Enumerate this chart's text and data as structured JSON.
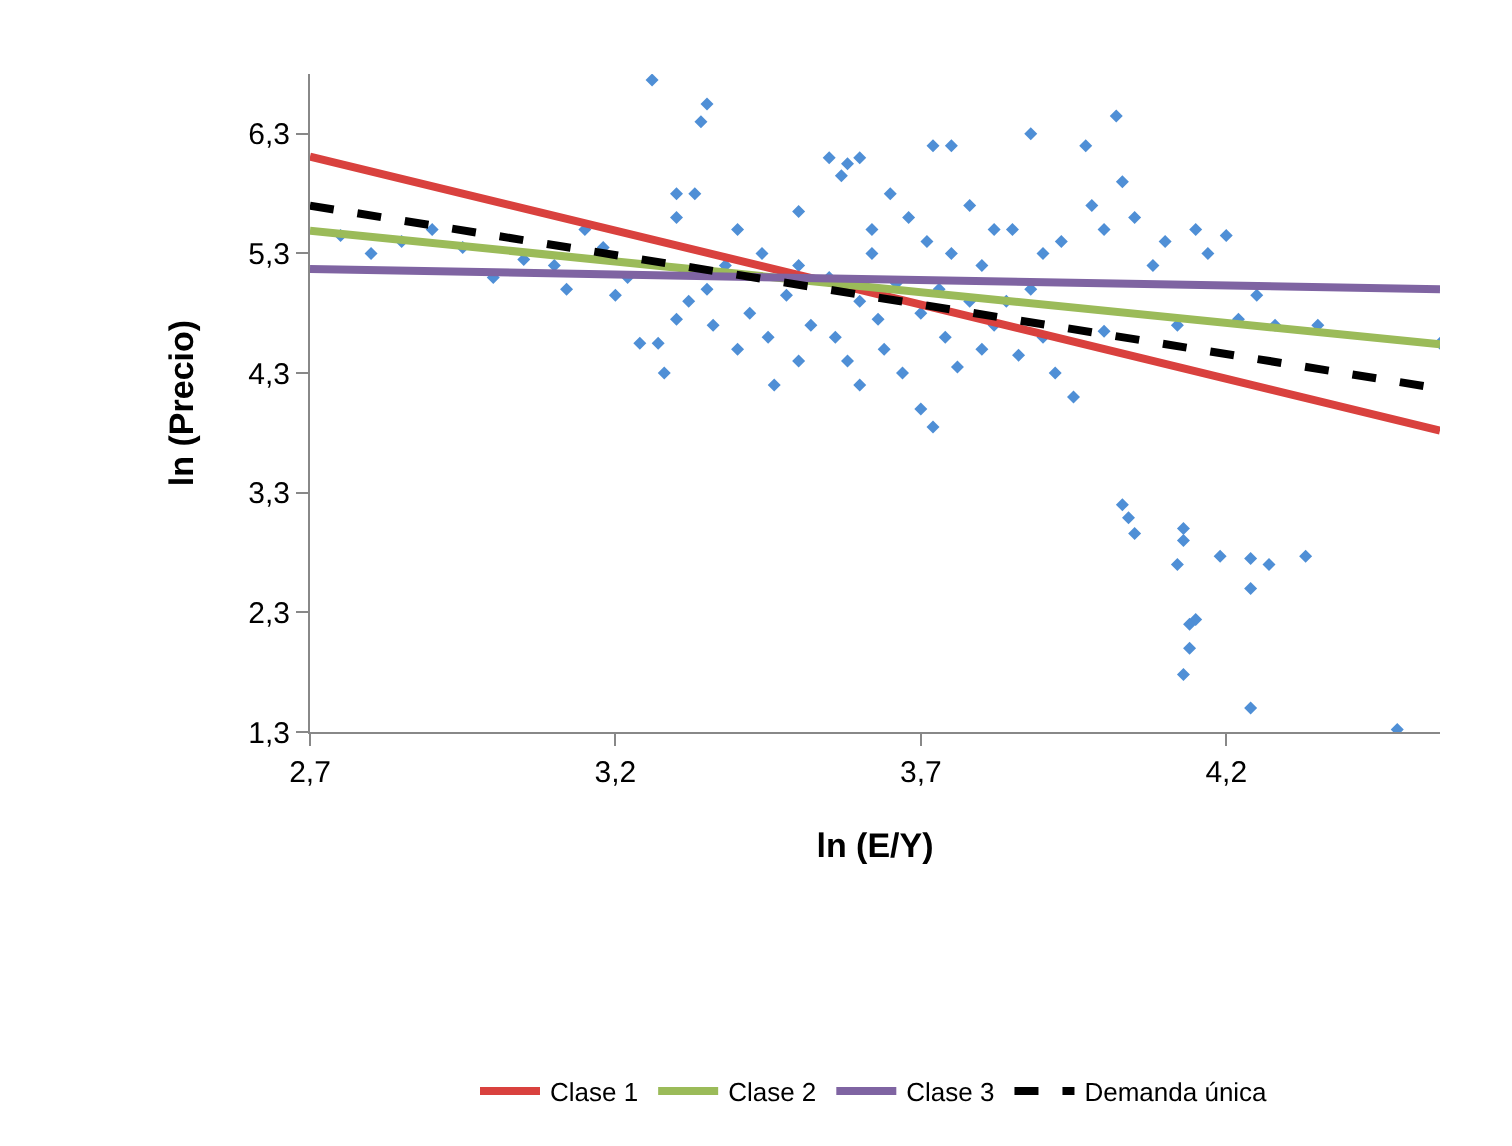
{
  "chart_data": {
    "type": "scatter",
    "xlabel": "ln (E/Y)",
    "ylabel": "ln (Precio)",
    "xlim": [
      2.7,
      4.55
    ],
    "xticks": [
      {
        "value": 2.7,
        "label": "2,7"
      },
      {
        "value": 3.2,
        "label": "3,2"
      },
      {
        "value": 3.7,
        "label": "3,7"
      },
      {
        "value": 4.2,
        "label": "4,2"
      }
    ],
    "ylim": [
      1.3,
      6.8
    ],
    "yticks": [
      {
        "value": 1.3,
        "label": "1,3"
      },
      {
        "value": 2.3,
        "label": "2,3"
      },
      {
        "value": 3.3,
        "label": "3,3"
      },
      {
        "value": 4.3,
        "label": "4,3"
      },
      {
        "value": 5.3,
        "label": "5,3"
      },
      {
        "value": 6.3,
        "label": "6,3"
      }
    ],
    "grid": false,
    "legend": "bottom",
    "series": [
      {
        "marker": "diamond",
        "color": "#4f8fd6",
        "x": [
          2.75,
          2.8,
          2.85,
          2.9,
          2.95,
          3.0,
          3.05,
          3.1,
          3.12,
          3.15,
          3.18,
          3.2,
          3.22,
          3.26,
          3.35,
          3.34,
          3.3,
          3.33,
          3.24,
          3.27,
          3.28,
          3.3,
          3.3,
          3.32,
          3.35,
          3.36,
          3.38,
          3.4,
          3.4,
          3.42,
          3.44,
          3.45,
          3.46,
          3.48,
          3.5,
          3.5,
          3.5,
          3.52,
          3.55,
          3.57,
          3.58,
          3.6,
          3.62,
          3.55,
          3.56,
          3.58,
          3.6,
          3.6,
          3.62,
          3.63,
          3.64,
          3.65,
          3.66,
          3.67,
          3.68,
          3.7,
          3.7,
          3.71,
          3.72,
          3.72,
          3.73,
          3.74,
          3.75,
          3.75,
          3.76,
          3.78,
          3.78,
          3.8,
          3.8,
          3.82,
          3.82,
          3.84,
          3.85,
          3.86,
          3.88,
          3.88,
          3.9,
          3.9,
          3.92,
          3.93,
          3.95,
          3.97,
          3.98,
          4.0,
          4.0,
          4.02,
          4.03,
          4.05,
          4.08,
          4.1,
          4.12,
          4.15,
          4.17,
          4.2,
          4.22,
          4.25,
          4.28,
          4.35,
          4.55,
          4.03,
          4.04,
          4.05,
          4.13,
          4.13,
          4.12,
          4.19,
          4.24,
          4.27,
          4.33,
          4.24,
          4.15,
          4.14,
          4.14,
          4.13,
          4.24,
          4.48
        ],
        "values": [
          5.45,
          5.3,
          5.4,
          5.5,
          5.35,
          5.1,
          5.25,
          5.2,
          5.0,
          5.5,
          5.35,
          4.95,
          5.1,
          6.75,
          6.55,
          6.4,
          5.8,
          5.8,
          4.55,
          4.55,
          4.3,
          4.75,
          5.6,
          4.9,
          5.0,
          4.7,
          5.2,
          5.5,
          4.5,
          4.8,
          5.3,
          4.6,
          4.2,
          4.95,
          5.65,
          4.4,
          5.2,
          4.7,
          6.1,
          5.95,
          6.05,
          6.1,
          5.5,
          5.1,
          4.6,
          4.4,
          4.9,
          4.2,
          5.3,
          4.75,
          4.5,
          5.8,
          5.05,
          4.3,
          5.6,
          4.8,
          4.0,
          5.4,
          6.2,
          3.85,
          5.0,
          4.6,
          5.3,
          6.2,
          4.35,
          5.7,
          4.9,
          4.5,
          5.2,
          5.5,
          4.7,
          4.9,
          5.5,
          4.45,
          6.3,
          5.0,
          4.6,
          5.3,
          4.3,
          5.4,
          4.1,
          6.2,
          5.7,
          5.5,
          4.65,
          6.45,
          5.9,
          5.6,
          5.2,
          5.4,
          4.7,
          5.5,
          5.3,
          5.45,
          4.75,
          4.95,
          4.7,
          4.7,
          4.55,
          3.2,
          3.09,
          2.96,
          3.0,
          2.9,
          2.7,
          2.77,
          2.75,
          2.7,
          2.77,
          2.5,
          2.24,
          2.2,
          2.0,
          1.78,
          1.5,
          1.32
        ]
      },
      {
        "type": "line",
        "name": "Clase 1",
        "color": "#d9413e",
        "line_style": "solid",
        "x": [
          2.7,
          4.55
        ],
        "values": [
          6.11,
          3.82
        ]
      },
      {
        "type": "line",
        "name": "Clase 2",
        "color": "#9bbb59",
        "line_style": "solid",
        "x": [
          2.7,
          4.55
        ],
        "values": [
          5.49,
          4.54
        ]
      },
      {
        "type": "line",
        "name": "Clase 3",
        "color": "#7f64a2",
        "line_style": "solid",
        "x": [
          2.7,
          4.55
        ],
        "values": [
          5.17,
          5.0
        ]
      },
      {
        "type": "line",
        "name": "Demanda única",
        "color": "#000000",
        "line_style": "dashed",
        "x": [
          2.7,
          4.55
        ],
        "values": [
          5.7,
          4.17
        ]
      }
    ]
  }
}
